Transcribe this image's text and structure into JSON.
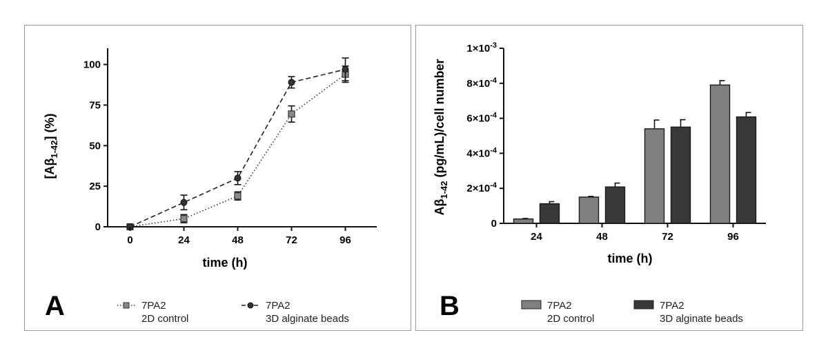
{
  "chart_data": [
    {
      "panel": "A",
      "type": "line",
      "ylabel_main": "[Aβ",
      "ylabel_sub": "1-42",
      "ylabel_tail": "] (%)",
      "xlabel": "time (h)",
      "x": [
        0,
        24,
        48,
        72,
        96
      ],
      "xticks": [
        "0",
        "24",
        "48",
        "72",
        "96"
      ],
      "yticks": [
        "0",
        "25",
        "50",
        "75",
        "100"
      ],
      "ytick_values": [
        0,
        25,
        50,
        75,
        100
      ],
      "xlim": [
        -10,
        110
      ],
      "ylim": [
        0,
        110
      ],
      "series": [
        {
          "name": "7PA2",
          "subname": "2D control",
          "marker": "square",
          "line": "dotted",
          "color": "#777777",
          "values": [
            0,
            5,
            19,
            69.5,
            94
          ],
          "errors": [
            0,
            2.5,
            2.5,
            5,
            5
          ]
        },
        {
          "name": "7PA2",
          "subname": "3D alginate beads",
          "marker": "circle",
          "line": "dashed",
          "color": "#333333",
          "values": [
            0,
            15,
            30,
            89,
            97
          ],
          "errors": [
            0,
            4.5,
            4,
            3.5,
            7
          ]
        }
      ]
    },
    {
      "panel": "B",
      "type": "bar",
      "ylabel_main": "Aβ",
      "ylabel_sub": "1-42",
      "ylabel_tail": " (pg/mL)/cell number",
      "xlabel": "time (h)",
      "categories": [
        "24",
        "48",
        "72",
        "96"
      ],
      "ylim": [
        0,
        0.001
      ],
      "ytick_values": [
        0,
        0.0002,
        0.0004,
        0.0006,
        0.0008,
        0.001
      ],
      "ytick_mantissa": [
        "0",
        "2×10",
        "4×10",
        "6×10",
        "8×10",
        "1×10"
      ],
      "ytick_exponent": [
        "",
        "-4",
        "-4",
        "-4",
        "-4",
        "-3"
      ],
      "series": [
        {
          "name": "7PA2",
          "subname": "2D control",
          "color": "#808080",
          "values": [
            2.5e-05,
            0.00015,
            0.00054,
            0.00079
          ],
          "errors": [
            3e-06,
            4e-06,
            5e-05,
            2.5e-05
          ]
        },
        {
          "name": "7PA2",
          "subname": "3D alginate beads",
          "color": "#383838",
          "values": [
            0.000112,
            0.000208,
            0.00055,
            0.000608
          ],
          "errors": [
            1.2e-05,
            2.2e-05,
            4.2e-05,
            2.5e-05
          ]
        }
      ]
    }
  ]
}
